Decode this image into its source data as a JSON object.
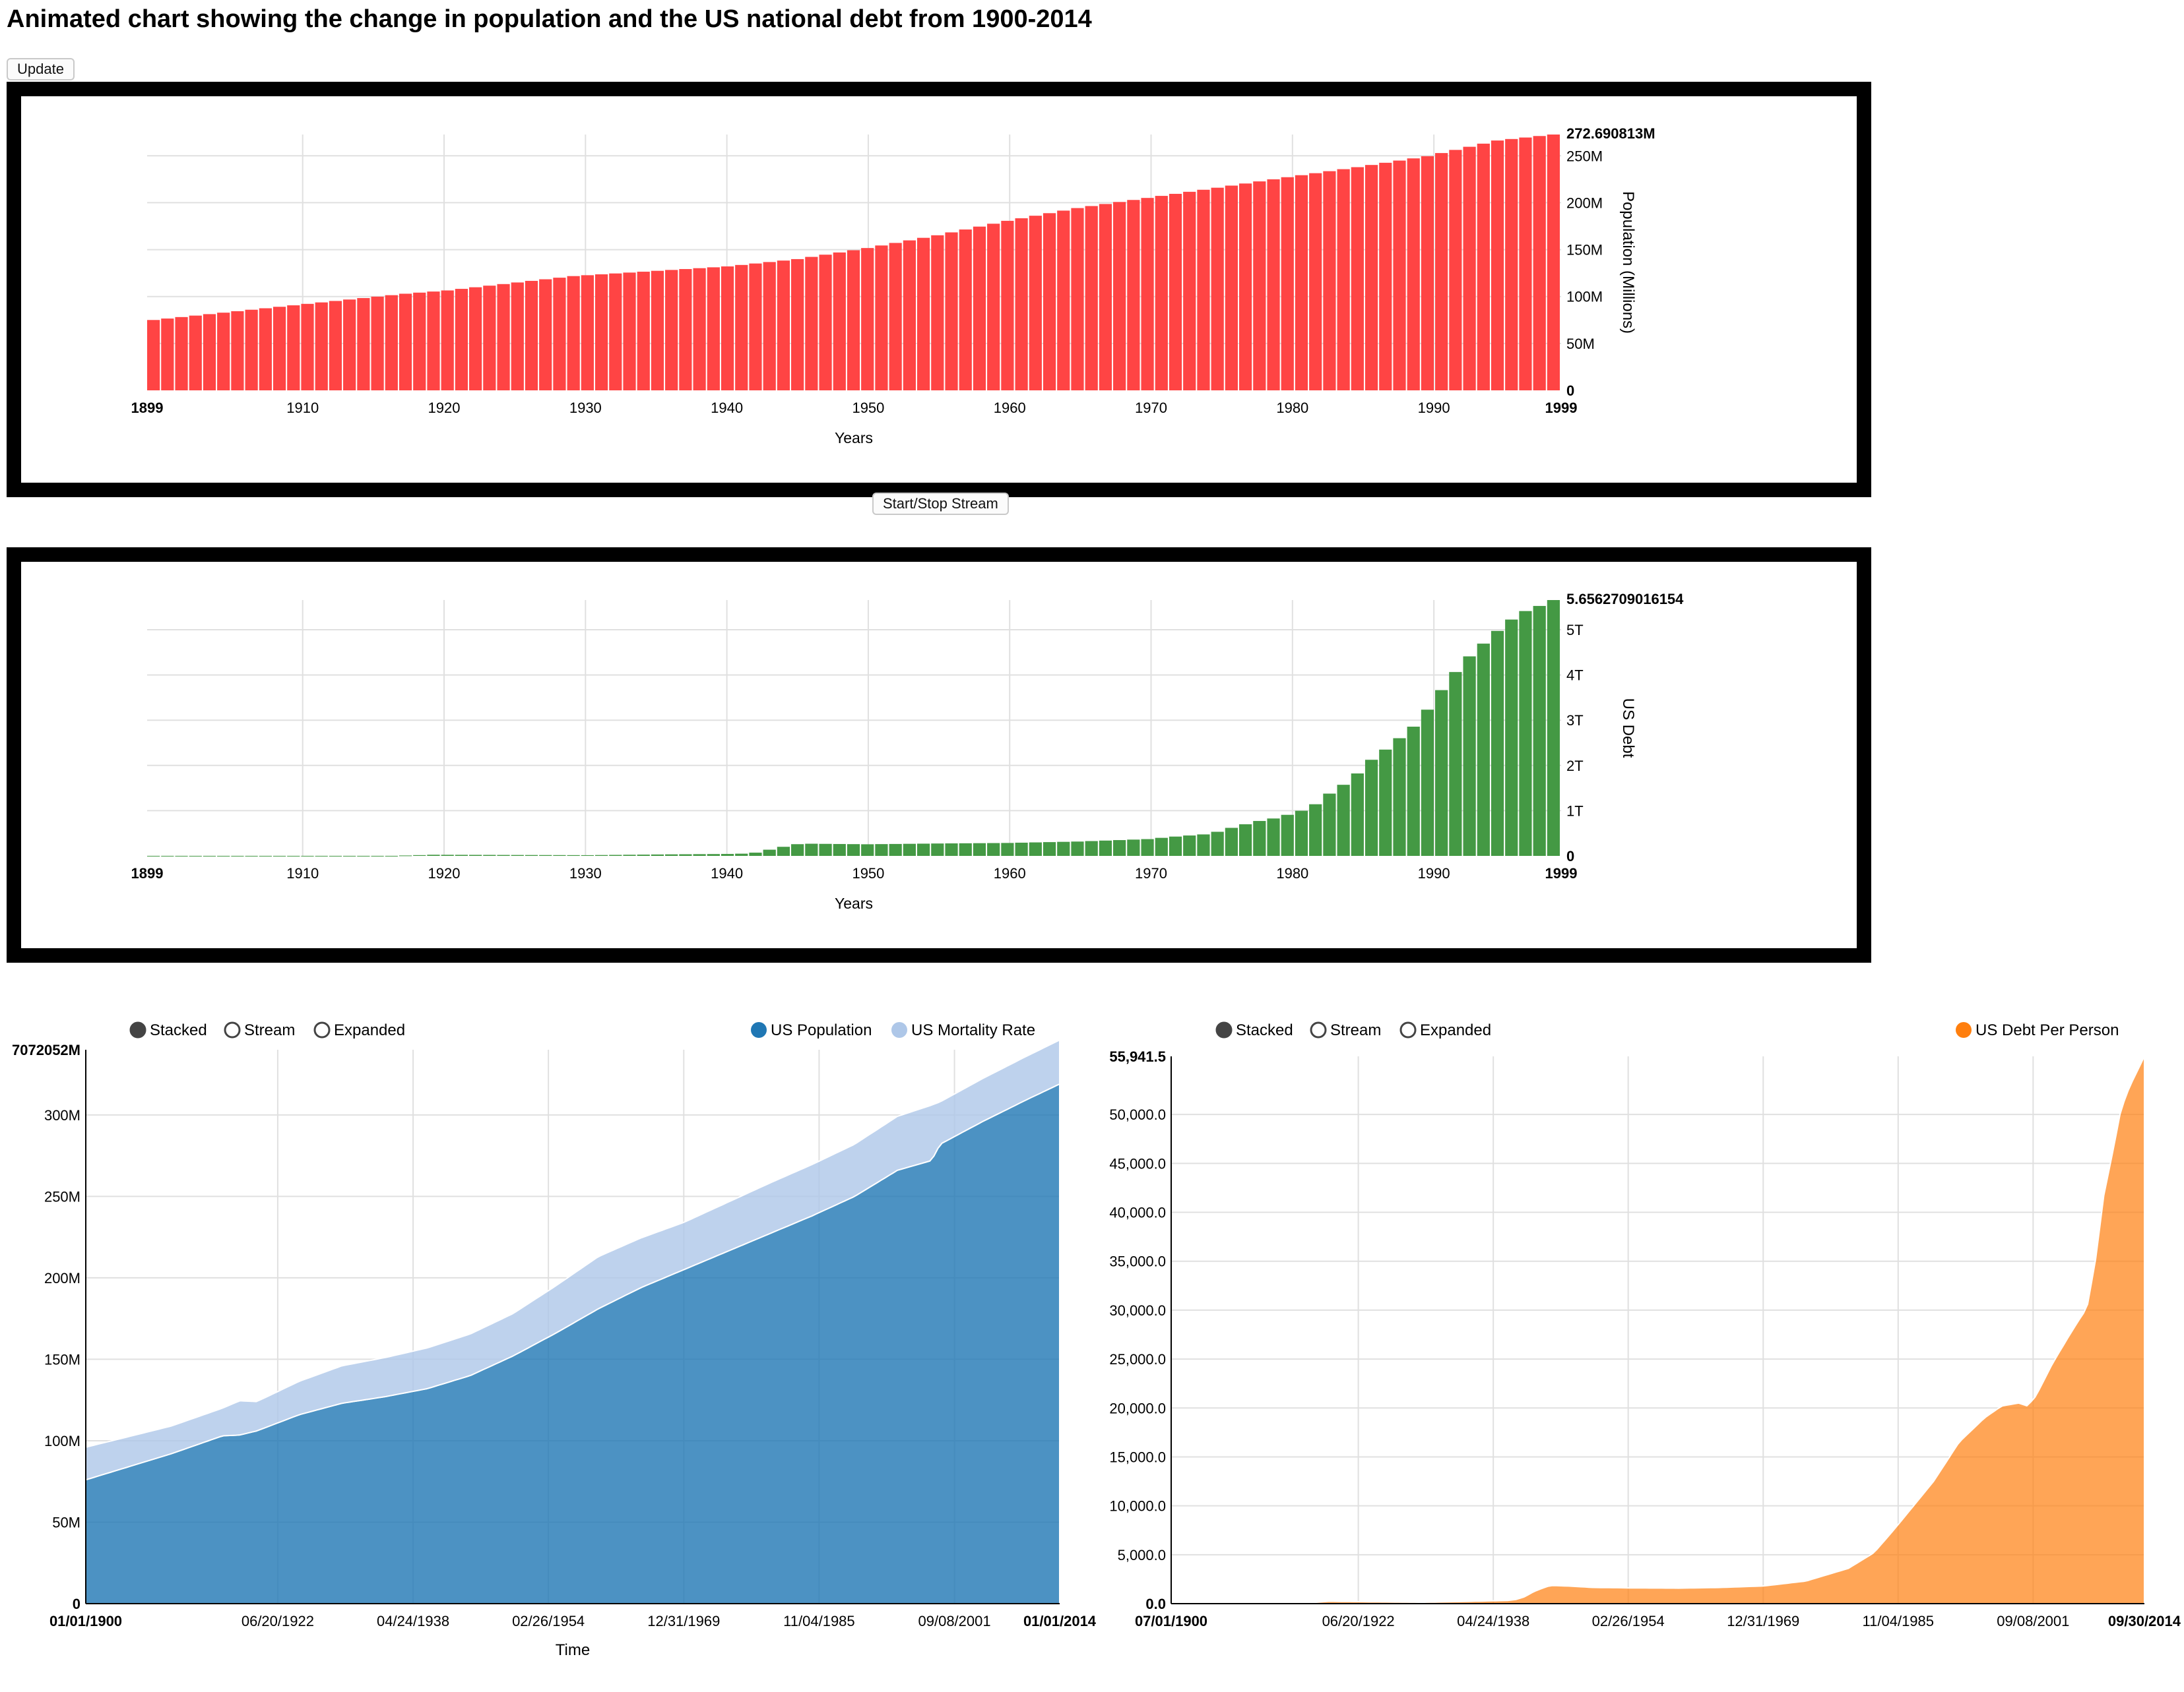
{
  "page": {
    "title": "Animated chart showing the change in population and the US national debt from 1900-2014",
    "update_label": "Update",
    "stream_label": "Start/Stop Stream"
  },
  "colors": {
    "population_bar": "#ff4444",
    "debt_bar": "#449944",
    "us_population": "#1f77b4",
    "us_mortality": "#aec7e8",
    "debt_per_person": "#ff7f0e",
    "grid": "#e0e0e0"
  },
  "controls": {
    "stacked": "Stacked",
    "stream": "Stream",
    "expanded": "Expanded",
    "selected_mode": "Stacked"
  },
  "chart_data": [
    {
      "id": "population-bar-chart",
      "type": "bar",
      "xlabel": "Years",
      "ylabel": "Population (Millions)",
      "x_range": [
        1899,
        1999
      ],
      "x_ticks": [
        "1899",
        "1910",
        "1920",
        "1930",
        "1940",
        "1950",
        "1960",
        "1970",
        "1980",
        "1990",
        "1999"
      ],
      "y_ticks": [
        "0",
        "50M",
        "100M",
        "150M",
        "200M",
        "250M"
      ],
      "y_max_label": "272.690813M",
      "ylim": [
        0,
        272.690813
      ],
      "unit": "millions",
      "grid": true,
      "anchors": [
        [
          1899,
          75
        ],
        [
          1910,
          92.2
        ],
        [
          1917,
          103
        ],
        [
          1920,
          106.5
        ],
        [
          1929,
          121.8
        ],
        [
          1940,
          132.1
        ],
        [
          1945,
          139.9
        ],
        [
          1950,
          151.7
        ],
        [
          1955,
          165.3
        ],
        [
          1960,
          180.7
        ],
        [
          1965,
          194.3
        ],
        [
          1970,
          205.1
        ],
        [
          1975,
          216
        ],
        [
          1980,
          227.2
        ],
        [
          1985,
          237.9
        ],
        [
          1990,
          249.6
        ],
        [
          1995,
          266.3
        ],
        [
          1999,
          272.690813
        ]
      ]
    },
    {
      "id": "debt-bar-chart",
      "type": "bar",
      "xlabel": "Years",
      "ylabel": "US Debt",
      "x_range": [
        1899,
        1999
      ],
      "x_ticks": [
        "1899",
        "1910",
        "1920",
        "1930",
        "1940",
        "1950",
        "1960",
        "1970",
        "1980",
        "1990",
        "1999"
      ],
      "y_ticks": [
        "0",
        "1T",
        "2T",
        "3T",
        "4T",
        "5T"
      ],
      "y_max_label": "5.6562709016154",
      "ylim": [
        0,
        5.6562709016154
      ],
      "unit": "trillions",
      "grid": true,
      "anchors": [
        [
          1899,
          0.0012
        ],
        [
          1916,
          0.0012
        ],
        [
          1919,
          0.025
        ],
        [
          1930,
          0.016
        ],
        [
          1936,
          0.034
        ],
        [
          1940,
          0.043
        ],
        [
          1941,
          0.049
        ],
        [
          1942,
          0.072
        ],
        [
          1943,
          0.137
        ],
        [
          1944,
          0.201
        ],
        [
          1945,
          0.259
        ],
        [
          1946,
          0.269
        ],
        [
          1950,
          0.257
        ],
        [
          1955,
          0.274
        ],
        [
          1960,
          0.286
        ],
        [
          1965,
          0.317
        ],
        [
          1970,
          0.371
        ],
        [
          1972,
          0.427
        ],
        [
          1974,
          0.475
        ],
        [
          1975,
          0.533
        ],
        [
          1976,
          0.62
        ],
        [
          1977,
          0.699
        ],
        [
          1978,
          0.772
        ],
        [
          1979,
          0.827
        ],
        [
          1980,
          0.908
        ],
        [
          1981,
          0.998
        ],
        [
          1982,
          1.142
        ],
        [
          1983,
          1.377
        ],
        [
          1984,
          1.572
        ],
        [
          1985,
          1.823
        ],
        [
          1986,
          2.125
        ],
        [
          1987,
          2.35
        ],
        [
          1988,
          2.602
        ],
        [
          1989,
          2.857
        ],
        [
          1990,
          3.233
        ],
        [
          1991,
          3.665
        ],
        [
          1992,
          4.065
        ],
        [
          1993,
          4.411
        ],
        [
          1994,
          4.693
        ],
        [
          1995,
          4.974
        ],
        [
          1996,
          5.225
        ],
        [
          1997,
          5.413
        ],
        [
          1998,
          5.526
        ],
        [
          1999,
          5.6562709016154
        ]
      ]
    },
    {
      "id": "population-area-chart",
      "type": "area",
      "stacked": true,
      "xlabel": "Time",
      "ylabel": "",
      "x_range": [
        1900,
        2014
      ],
      "x_ticks": [
        "01/01/1900",
        "06/20/1922",
        "04/24/1938",
        "02/26/1954",
        "12/31/1969",
        "11/04/1985",
        "09/08/2001",
        "01/01/2014"
      ],
      "y_ticks": [
        "0",
        "50M",
        "100M",
        "150M",
        "200M",
        "250M",
        "300M"
      ],
      "y_max_label": "7072052M",
      "ylim": [
        0,
        340
      ],
      "legend": "top-right",
      "grid": true,
      "series": [
        {
          "name": "US Population",
          "anchors": [
            [
              1900,
              76
            ],
            [
              1910,
              92
            ],
            [
              1916,
              103
            ],
            [
              1918,
              103.5
            ],
            [
              1920,
              106
            ],
            [
              1925,
              116
            ],
            [
              1930,
              123
            ],
            [
              1935,
              127
            ],
            [
              1940,
              132
            ],
            [
              1945,
              140
            ],
            [
              1950,
              152
            ],
            [
              1955,
              166
            ],
            [
              1960,
              181
            ],
            [
              1965,
              194
            ],
            [
              1970,
              205
            ],
            [
              1975,
              216
            ],
            [
              1980,
              227
            ],
            [
              1985,
              238
            ],
            [
              1990,
              250
            ],
            [
              1995,
              266
            ],
            [
              1999,
              272
            ],
            [
              2000,
              282
            ],
            [
              2005,
              296
            ],
            [
              2010,
              309
            ],
            [
              2014,
              319
            ]
          ]
        },
        {
          "name": "US Mortality Rate",
          "anchors": [
            [
              1900,
              20
            ],
            [
              1910,
              17
            ],
            [
              1916,
              17
            ],
            [
              1918,
              21
            ],
            [
              1920,
              18
            ],
            [
              1930,
              23
            ],
            [
              1940,
              25
            ],
            [
              1950,
              26
            ],
            [
              1960,
              32
            ],
            [
              1970,
              29
            ],
            [
              1980,
              31
            ],
            [
              1990,
              32
            ],
            [
              1999,
              34
            ],
            [
              2000,
              26
            ],
            [
              2014,
              27
            ]
          ]
        }
      ]
    },
    {
      "id": "debt-per-person-area-chart",
      "type": "area",
      "xlabel": "",
      "ylabel": "",
      "x_range": [
        1900.5,
        2014.75
      ],
      "x_ticks": [
        "07/01/1900",
        "06/20/1922",
        "04/24/1938",
        "02/26/1954",
        "12/31/1969",
        "11/04/1985",
        "09/08/2001",
        "09/30/2014"
      ],
      "y_ticks": [
        "0.0",
        "5,000.0",
        "10,000.0",
        "15,000.0",
        "20,000.0",
        "25,000.0",
        "30,000.0",
        "35,000.0",
        "40,000.0",
        "45,000.0",
        "50,000.0"
      ],
      "y_max_label": "55,941.5",
      "ylim": [
        0,
        55941.5
      ],
      "legend": "top-right",
      "grid": true,
      "series": [
        {
          "name": "US Debt Per Person",
          "anchors": [
            [
              1900.5,
              15
            ],
            [
              1916,
              20
            ],
            [
              1919,
              240
            ],
            [
              1925,
              180
            ],
            [
              1930,
              130
            ],
            [
              1940,
              320
            ],
            [
              1941,
              420
            ],
            [
              1942,
              700
            ],
            [
              1943,
              1200
            ],
            [
              1944,
              1550
            ],
            [
              1945,
              1850
            ],
            [
              1947,
              1800
            ],
            [
              1950,
              1650
            ],
            [
              1955,
              1600
            ],
            [
              1960,
              1580
            ],
            [
              1965,
              1650
            ],
            [
              1970,
              1800
            ],
            [
              1975,
              2300
            ],
            [
              1980,
              3600
            ],
            [
              1983,
              5200
            ],
            [
              1985,
              7200
            ],
            [
              1987,
              9300
            ],
            [
              1990,
              12500
            ],
            [
              1993,
              16500
            ],
            [
              1996,
              19000
            ],
            [
              1998,
              20200
            ],
            [
              2000,
              20500
            ],
            [
              2001,
              20200
            ],
            [
              2002,
              21200
            ],
            [
              2004,
              24600
            ],
            [
              2006,
              27500
            ],
            [
              2007,
              28900
            ],
            [
              2008,
              30200
            ],
            [
              2009,
              35000
            ],
            [
              2010,
              41800
            ],
            [
              2011,
              46000
            ],
            [
              2012,
              50500
            ],
            [
              2013,
              52800
            ],
            [
              2014.75,
              55941.5
            ]
          ]
        }
      ]
    }
  ]
}
